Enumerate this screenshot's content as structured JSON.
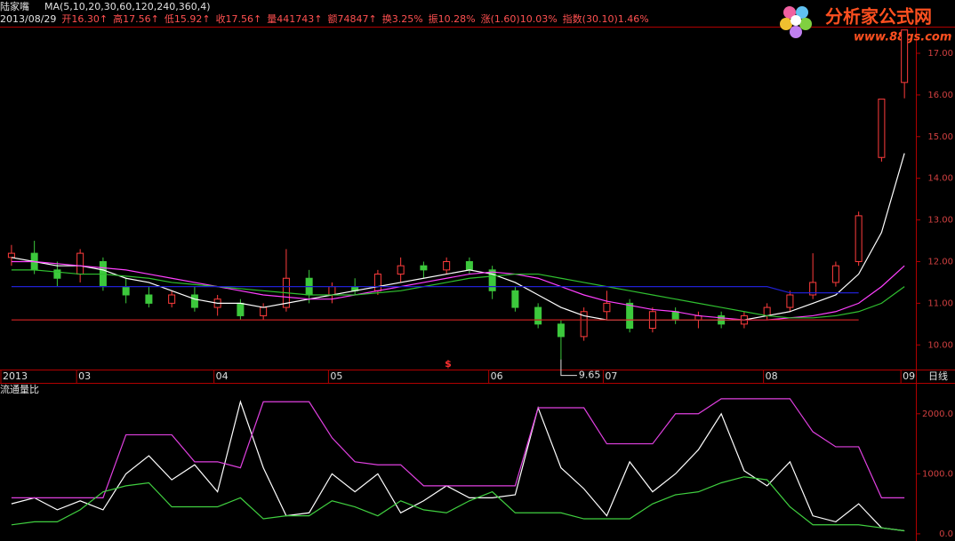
{
  "chart_data": [
    {
      "type": "candlestick",
      "title": "陆家嘴",
      "ma_label": "MA(5,10,20,30,60,120,240,360,4)",
      "info": [
        "2013/08/29",
        "开16.30↑",
        "高17.56↑",
        "低15.92↑",
        "收17.56↑",
        "量441743↑",
        "额74847↑",
        "换3.25%",
        "振10.28%",
        "涨(1.60)10.03%",
        "指数(30.10)1.46%"
      ],
      "watermark": "分析家公式网",
      "watermark_url": "www.88gs.com",
      "period": "日线",
      "marker": "$",
      "categories": [
        "2013",
        null,
        null,
        "03",
        null,
        null,
        null,
        null,
        null,
        "04",
        null,
        null,
        null,
        null,
        "05",
        null,
        null,
        null,
        null,
        null,
        null,
        "06",
        null,
        null,
        null,
        null,
        "07",
        null,
        null,
        null,
        null,
        null,
        null,
        "08",
        null,
        null,
        null,
        null,
        null,
        "09"
      ],
      "open": [
        12.1,
        12.2,
        11.8,
        11.7,
        12.0,
        11.4,
        11.2,
        11.0,
        11.2,
        10.9,
        11.0,
        10.7,
        10.9,
        11.6,
        11.2,
        11.4,
        11.3,
        11.7,
        11.9,
        11.8,
        12.0,
        11.8,
        11.3,
        10.9,
        10.5,
        10.2,
        10.8,
        11.0,
        10.4,
        10.8,
        10.6,
        10.7,
        10.5,
        10.7,
        10.9,
        11.2,
        11.5,
        12.0,
        14.5,
        16.3
      ],
      "high": [
        12.4,
        12.5,
        12.0,
        12.3,
        12.1,
        11.6,
        11.4,
        11.3,
        11.4,
        11.2,
        11.1,
        11.0,
        12.3,
        11.8,
        11.5,
        11.6,
        11.8,
        12.1,
        12.0,
        12.1,
        12.1,
        11.9,
        11.4,
        11.0,
        10.6,
        10.9,
        11.3,
        11.1,
        10.9,
        10.9,
        10.8,
        10.8,
        10.8,
        11.0,
        11.3,
        12.2,
        12.0,
        13.2,
        15.9,
        17.56
      ],
      "low": [
        11.9,
        11.7,
        11.4,
        11.5,
        11.3,
        11.0,
        10.9,
        10.9,
        10.8,
        10.7,
        10.6,
        10.6,
        10.8,
        11.0,
        11.0,
        11.2,
        11.2,
        11.5,
        11.6,
        11.7,
        11.7,
        11.1,
        10.8,
        10.4,
        9.65,
        10.1,
        10.6,
        10.3,
        10.3,
        10.5,
        10.4,
        10.4,
        10.4,
        10.6,
        10.8,
        11.1,
        11.4,
        11.9,
        14.4,
        15.92
      ],
      "close": [
        12.2,
        11.8,
        11.6,
        12.2,
        11.4,
        11.2,
        11.0,
        11.2,
        10.9,
        11.1,
        10.7,
        10.9,
        11.6,
        11.2,
        11.4,
        11.3,
        11.7,
        11.9,
        11.8,
        12.0,
        11.8,
        11.3,
        10.9,
        10.5,
        10.2,
        10.8,
        11.0,
        10.4,
        10.8,
        10.6,
        10.7,
        10.5,
        10.7,
        10.9,
        11.2,
        11.5,
        11.9,
        13.1,
        15.9,
        17.56
      ],
      "up_color": "#ff3c3c",
      "down_color": "#3cc83c",
      "series": [
        {
          "color": "#ffffff",
          "values": [
            12.1,
            12.0,
            11.9,
            11.9,
            11.8,
            11.6,
            11.5,
            11.3,
            11.1,
            11.0,
            11.0,
            10.9,
            11.0,
            11.1,
            11.2,
            11.3,
            11.4,
            11.5,
            11.6,
            11.7,
            11.8,
            11.7,
            11.5,
            11.2,
            10.9,
            10.7,
            10.6,
            10.6,
            10.6,
            10.6,
            10.6,
            10.6,
            10.6,
            10.7,
            10.8,
            11.0,
            11.2,
            11.7,
            12.7,
            14.6
          ]
        },
        {
          "color": "#ff40ff",
          "values": [
            12.0,
            12.0,
            11.95,
            11.9,
            11.85,
            11.8,
            11.7,
            11.6,
            11.5,
            11.4,
            11.3,
            11.2,
            11.15,
            11.1,
            11.1,
            11.2,
            11.3,
            11.4,
            11.5,
            11.6,
            11.7,
            11.75,
            11.7,
            11.6,
            11.4,
            11.2,
            11.05,
            10.95,
            10.85,
            10.8,
            10.7,
            10.65,
            10.6,
            10.6,
            10.65,
            10.7,
            10.8,
            11.0,
            11.4,
            11.9
          ]
        },
        {
          "color": "#30c030",
          "values": [
            11.8,
            11.8,
            11.75,
            11.7,
            11.7,
            11.65,
            11.6,
            11.5,
            11.45,
            11.4,
            11.35,
            11.3,
            11.25,
            11.2,
            11.2,
            11.2,
            11.25,
            11.3,
            11.4,
            11.5,
            11.6,
            11.65,
            11.7,
            11.7,
            11.6,
            11.5,
            11.4,
            11.3,
            11.2,
            11.1,
            11.0,
            10.9,
            10.8,
            10.7,
            10.65,
            10.65,
            10.7,
            10.8,
            11.0,
            11.4
          ]
        },
        {
          "color": "#2020d0",
          "values": [
            11.4,
            11.4,
            11.4,
            11.4,
            11.4,
            11.4,
            11.4,
            11.4,
            11.4,
            11.4,
            11.4,
            11.4,
            11.4,
            11.4,
            11.4,
            11.4,
            11.4,
            11.4,
            11.4,
            11.4,
            11.4,
            11.4,
            11.4,
            11.4,
            11.4,
            11.4,
            11.4,
            11.4,
            11.4,
            11.4,
            11.4,
            11.4,
            11.4,
            11.4,
            11.25,
            11.25,
            11.25,
            11.25,
            null,
            null
          ]
        },
        {
          "color": "#c02020",
          "values": [
            10.6,
            10.6,
            10.6,
            10.6,
            10.6,
            10.6,
            10.6,
            10.6,
            10.6,
            10.6,
            10.6,
            10.6,
            10.6,
            10.6,
            10.6,
            10.6,
            10.6,
            10.6,
            10.6,
            10.6,
            10.6,
            10.6,
            10.6,
            10.6,
            10.6,
            10.6,
            10.6,
            10.6,
            10.6,
            10.6,
            10.6,
            10.6,
            10.6,
            10.6,
            10.6,
            10.6,
            10.6,
            10.6,
            null,
            null
          ]
        }
      ],
      "ylim": [
        9.43,
        17.64
      ],
      "yticks": [
        {
          "value": 10,
          "label": "10.00"
        },
        {
          "value": 11,
          "label": "11.00"
        },
        {
          "value": 12,
          "label": "12.00"
        },
        {
          "value": 13,
          "label": "13.00"
        },
        {
          "value": 14,
          "label": "14.00"
        },
        {
          "value": 15,
          "label": "15.00"
        },
        {
          "value": 16,
          "label": "16.00"
        },
        {
          "value": 17,
          "label": "17.00"
        }
      ]
    },
    {
      "type": "line",
      "title": "流通量比",
      "series": [
        {
          "color": "#ffffff",
          "values": [
            500,
            600,
            400,
            550,
            400,
            1000,
            1300,
            900,
            1150,
            700,
            2200,
            1100,
            300,
            350,
            1000,
            700,
            1000,
            350,
            550,
            800,
            600,
            600,
            650,
            2100,
            1100,
            750,
            300,
            1200,
            700,
            1000,
            1400,
            2000,
            1050,
            800,
            1200,
            300,
            200,
            500,
            100,
            50
          ]
        },
        {
          "color": "#e040e0",
          "values": [
            600,
            600,
            600,
            600,
            600,
            1650,
            1650,
            1650,
            1200,
            1200,
            1100,
            2200,
            2200,
            2200,
            1600,
            1200,
            1150,
            1150,
            800,
            800,
            800,
            800,
            800,
            2100,
            2100,
            2100,
            1500,
            1500,
            1500,
            2000,
            2000,
            2250,
            2250,
            2250,
            2250,
            1700,
            1450,
            1450,
            600,
            600
          ]
        },
        {
          "color": "#40d040",
          "values": [
            150,
            200,
            200,
            400,
            700,
            800,
            850,
            450,
            450,
            450,
            600,
            250,
            300,
            300,
            550,
            450,
            300,
            550,
            400,
            350,
            550,
            700,
            350,
            350,
            350,
            250,
            250,
            250,
            500,
            650,
            700,
            850,
            950,
            900,
            450,
            150,
            150,
            150,
            100,
            50
          ]
        }
      ],
      "ylim": [
        -90,
        2500
      ],
      "yticks": [
        {
          "value": 0,
          "label": "0.0"
        },
        {
          "value": 1000,
          "label": "1000.0"
        },
        {
          "value": 2000,
          "label": "2000.0"
        }
      ]
    }
  ]
}
